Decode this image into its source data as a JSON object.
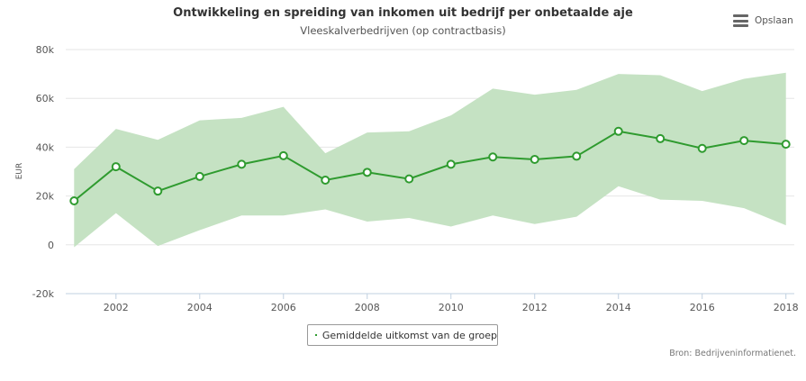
{
  "chart_data": {
    "type": "line",
    "title": "Ontwikkeling en spreiding van inkomen uit bedrijf per onbetaalde aje",
    "subtitle": "Vleeskalverbedrijven (op contractbasis)",
    "ylabel": "EUR",
    "xlabel": "",
    "x": [
      2001,
      2002,
      2003,
      2004,
      2005,
      2006,
      2007,
      2008,
      2009,
      2010,
      2011,
      2012,
      2013,
      2014,
      2015,
      2016,
      2017,
      2018
    ],
    "xlim": [
      2000.8,
      2018.2
    ],
    "xticks": [
      "2002",
      "2004",
      "2006",
      "2008",
      "2010",
      "2012",
      "2014",
      "2016",
      "2018"
    ],
    "ylim": [
      -20000,
      80000
    ],
    "yticks": [
      "-20k",
      "0",
      "20k",
      "40k",
      "60k",
      "80k"
    ],
    "grid": true,
    "legend_position": "bottom-center",
    "series": [
      {
        "name": "Gemiddelde uitkomst van de groep",
        "color": "#2f9b2f",
        "values": [
          18000,
          32000,
          22000,
          28000,
          33000,
          36500,
          26500,
          29700,
          27000,
          33000,
          36000,
          35000,
          36300,
          46500,
          43500,
          39500,
          42700,
          41200
        ]
      }
    ],
    "range": {
      "color": "#c5e2c3",
      "low": [
        -1000,
        13000,
        -500,
        6000,
        12000,
        12000,
        14500,
        9500,
        11000,
        7500,
        12000,
        8500,
        11500,
        24000,
        18500,
        18000,
        15000,
        8000
      ],
      "high": [
        31000,
        47500,
        43000,
        51000,
        52000,
        56500,
        37500,
        46000,
        46500,
        53000,
        64000,
        61500,
        63500,
        70000,
        69500,
        63000,
        68000,
        70500
      ]
    }
  },
  "toolbar": {
    "menu_label": "Opslaan",
    "icon": "hamburger-menu-icon"
  },
  "source": "Bron: Bedrijveninformatienet."
}
